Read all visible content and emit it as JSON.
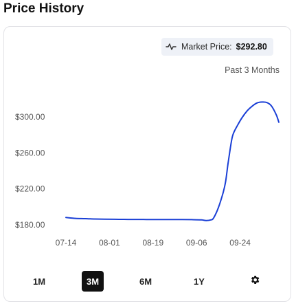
{
  "title": "Price History",
  "market_price": {
    "label": "Market Price:",
    "value": "$292.80",
    "icon": "price-pulse-icon"
  },
  "range_label": "Past 3 Months",
  "timeframes": [
    {
      "label": "1M",
      "active": false
    },
    {
      "label": "3M",
      "active": true
    },
    {
      "label": "6M",
      "active": false
    },
    {
      "label": "1Y",
      "active": false
    }
  ],
  "settings_icon": "gear-icon",
  "colors": {
    "line": "#1a3fd6",
    "active_tab": "#111111",
    "badge_bg": "#eef1f7"
  },
  "chart_data": {
    "type": "line",
    "title": "",
    "xlabel": "",
    "ylabel": "",
    "x_ticks": [
      "07-14",
      "08-01",
      "08-19",
      "09-06",
      "09-24"
    ],
    "y_ticks": [
      "$180.00",
      "$220.00",
      "$260.00",
      "$300.00"
    ],
    "ylim": [
      180,
      300
    ],
    "grid": false,
    "series": [
      {
        "x": [
          "07-14",
          "07-18",
          "07-22",
          "07-26",
          "07-30",
          "08-03",
          "08-07",
          "08-11",
          "08-15",
          "08-19",
          "08-23",
          "08-27",
          "08-31",
          "09-04",
          "09-08",
          "09-10",
          "09-12",
          "09-13",
          "09-15",
          "09-17",
          "09-18",
          "09-19",
          "09-20",
          "09-21",
          "09-23",
          "09-25",
          "09-27",
          "09-29",
          "10-01",
          "10-03",
          "10-05",
          "10-07",
          "10-09",
          "10-10"
        ],
        "values": [
          188.2,
          187.2,
          186.9,
          186.5,
          186.3,
          186.2,
          186.1,
          186.0,
          186.0,
          185.9,
          185.9,
          185.9,
          185.9,
          185.8,
          185.5,
          184.8,
          185.6,
          187.5,
          199,
          216,
          228,
          248,
          266,
          280,
          291,
          300,
          307,
          312,
          315.5,
          316.5,
          316,
          312,
          302,
          294
        ]
      }
    ]
  }
}
